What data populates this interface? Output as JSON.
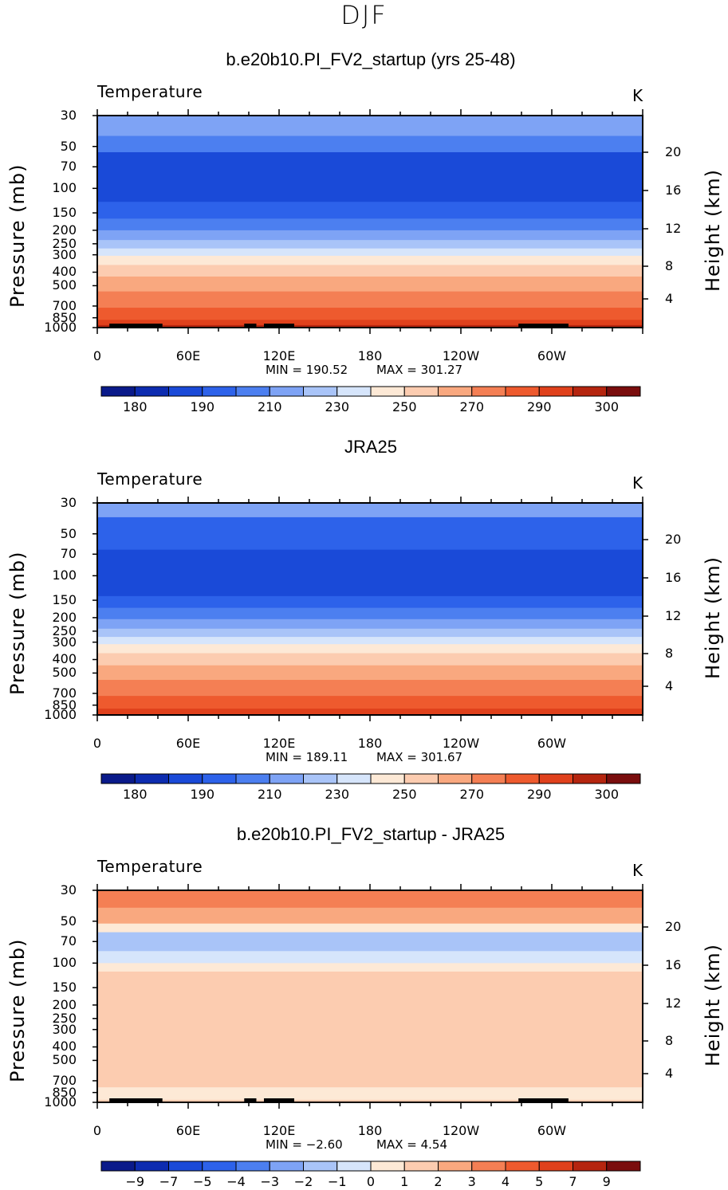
{
  "page": {
    "title": "DJF"
  },
  "colorbar_palette": [
    "#0a1a8a",
    "#0d2cb0",
    "#1a4ad8",
    "#2d62ea",
    "#4c7ff0",
    "#7ea3f5",
    "#a9c4f8",
    "#d6e5fb",
    "#fde9d6",
    "#fcccb0",
    "#f9a87f",
    "#f47f54",
    "#ee5a2e",
    "#e0411c",
    "#b5250f",
    "#7a0d0d"
  ],
  "panels": [
    {
      "title": "b.e20b10.PI_FV2_startup (yrs 25-48)",
      "variable": "Temperature",
      "units": "K",
      "min_label": "MIN = 190.52",
      "max_label": "MAX = 301.27",
      "colorbar_labels": [
        "180",
        "190",
        "210",
        "230",
        "250",
        "270",
        "290",
        "300"
      ]
    },
    {
      "title": "JRA25",
      "variable": "Temperature",
      "units": "K",
      "min_label": "MIN = 189.11",
      "max_label": "MAX = 301.67",
      "colorbar_labels": [
        "180",
        "190",
        "210",
        "230",
        "250",
        "270",
        "290",
        "300"
      ]
    },
    {
      "title": "b.e20b10.PI_FV2_startup - JRA25",
      "variable": "Temperature",
      "units": "K",
      "min_label": "MIN = −2.60",
      "max_label": "MAX = 4.54",
      "colorbar_labels": [
        "−9",
        "−7",
        "−5",
        "−4",
        "−3",
        "−2",
        "−1",
        "0",
        "1",
        "2",
        "3",
        "4",
        "5",
        "7",
        "9"
      ]
    }
  ],
  "chart_data": [
    {
      "type": "heatmap",
      "title": "b.e20b10.PI_FV2_startup (yrs 25-48)",
      "xlabel": "",
      "ylabel": "Pressure (mb)",
      "y2label": "Height (km)",
      "x_ticks": [
        "0",
        "60E",
        "120E",
        "180",
        "120W",
        "60W"
      ],
      "y_ticks": [
        "30",
        "50",
        "70",
        "100",
        "150",
        "200",
        "250",
        "300",
        "400",
        "500",
        "700",
        "850",
        "1000"
      ],
      "y2_ticks": [
        "20",
        "16",
        "12",
        "8",
        "4"
      ],
      "levels": [
        180,
        185,
        190,
        200,
        210,
        220,
        230,
        240,
        250,
        260,
        270,
        280,
        290,
        295,
        300
      ],
      "min": 190.52,
      "max": 301.27,
      "units": "K",
      "layers": [
        {
          "p_top": 30,
          "p_bot": 42,
          "color_index": 5
        },
        {
          "p_top": 42,
          "p_bot": 55,
          "color_index": 4
        },
        {
          "p_top": 55,
          "p_bot": 125,
          "color_index": 2
        },
        {
          "p_top": 125,
          "p_bot": 165,
          "color_index": 3
        },
        {
          "p_top": 165,
          "p_bot": 200,
          "color_index": 4
        },
        {
          "p_top": 200,
          "p_bot": 235,
          "color_index": 5
        },
        {
          "p_top": 235,
          "p_bot": 270,
          "color_index": 6
        },
        {
          "p_top": 270,
          "p_bot": 305,
          "color_index": 7
        },
        {
          "p_top": 305,
          "p_bot": 355,
          "color_index": 8
        },
        {
          "p_top": 355,
          "p_bot": 430,
          "color_index": 9
        },
        {
          "p_top": 430,
          "p_bot": 550,
          "color_index": 10
        },
        {
          "p_top": 550,
          "p_bot": 720,
          "color_index": 11
        },
        {
          "p_top": 720,
          "p_bot": 880,
          "color_index": 12
        },
        {
          "p_top": 880,
          "p_bot": 960,
          "color_index": 13
        },
        {
          "p_top": 960,
          "p_bot": 1000,
          "color_index": 14
        }
      ],
      "topography": [
        [
          8,
          30
        ],
        [
          30,
          43
        ],
        [
          97,
          105
        ],
        [
          110,
          130
        ],
        [
          278,
          311
        ]
      ]
    },
    {
      "type": "heatmap",
      "title": "JRA25",
      "xlabel": "",
      "ylabel": "Pressure (mb)",
      "y2label": "Height (km)",
      "x_ticks": [
        "0",
        "60E",
        "120E",
        "180",
        "120W",
        "60W"
      ],
      "y_ticks": [
        "30",
        "50",
        "70",
        "100",
        "150",
        "200",
        "250",
        "300",
        "400",
        "500",
        "700",
        "850",
        "1000"
      ],
      "y2_ticks": [
        "20",
        "16",
        "12",
        "8",
        "4"
      ],
      "levels": [
        180,
        185,
        190,
        200,
        210,
        220,
        230,
        240,
        250,
        260,
        270,
        280,
        290,
        295,
        300
      ],
      "min": 189.11,
      "max": 301.67,
      "units": "K",
      "layers": [
        {
          "p_top": 30,
          "p_bot": 38,
          "color_index": 5
        },
        {
          "p_top": 38,
          "p_bot": 65,
          "color_index": 3
        },
        {
          "p_top": 65,
          "p_bot": 140,
          "color_index": 2
        },
        {
          "p_top": 140,
          "p_bot": 170,
          "color_index": 3
        },
        {
          "p_top": 170,
          "p_bot": 205,
          "color_index": 4
        },
        {
          "p_top": 205,
          "p_bot": 240,
          "color_index": 5
        },
        {
          "p_top": 240,
          "p_bot": 275,
          "color_index": 6
        },
        {
          "p_top": 275,
          "p_bot": 310,
          "color_index": 7
        },
        {
          "p_top": 310,
          "p_bot": 360,
          "color_index": 8
        },
        {
          "p_top": 360,
          "p_bot": 440,
          "color_index": 9
        },
        {
          "p_top": 440,
          "p_bot": 560,
          "color_index": 10
        },
        {
          "p_top": 560,
          "p_bot": 730,
          "color_index": 11
        },
        {
          "p_top": 730,
          "p_bot": 900,
          "color_index": 12
        },
        {
          "p_top": 900,
          "p_bot": 1000,
          "color_index": 13
        }
      ],
      "topography": []
    },
    {
      "type": "heatmap",
      "title": "b.e20b10.PI_FV2_startup - JRA25",
      "xlabel": "",
      "ylabel": "Pressure (mb)",
      "y2label": "Height (km)",
      "x_ticks": [
        "0",
        "60E",
        "120E",
        "180",
        "120W",
        "60W"
      ],
      "y_ticks": [
        "30",
        "50",
        "70",
        "100",
        "150",
        "200",
        "250",
        "300",
        "400",
        "500",
        "700",
        "850",
        "1000"
      ],
      "y2_ticks": [
        "20",
        "16",
        "12",
        "8",
        "4"
      ],
      "levels": [
        -9,
        -7,
        -5,
        -4,
        -3,
        -2,
        -1,
        0,
        1,
        2,
        3,
        4,
        5,
        7,
        9
      ],
      "min": -2.6,
      "max": 4.54,
      "units": "K",
      "layers": [
        {
          "p_top": 30,
          "p_bot": 40,
          "color_index": 11
        },
        {
          "p_top": 40,
          "p_bot": 52,
          "color_index": 10
        },
        {
          "p_top": 52,
          "p_bot": 60,
          "color_index": 8
        },
        {
          "p_top": 60,
          "p_bot": 82,
          "color_index": 6
        },
        {
          "p_top": 82,
          "p_bot": 100,
          "color_index": 7
        },
        {
          "p_top": 100,
          "p_bot": 115,
          "color_index": 8
        },
        {
          "p_top": 115,
          "p_bot": 780,
          "color_index": 9
        },
        {
          "p_top": 780,
          "p_bot": 960,
          "color_index": 8
        },
        {
          "p_top": 960,
          "p_bot": 1000,
          "color_index": 9
        }
      ],
      "topography": [
        [
          8,
          30
        ],
        [
          30,
          43
        ],
        [
          97,
          105
        ],
        [
          110,
          130
        ],
        [
          278,
          311
        ]
      ]
    }
  ]
}
